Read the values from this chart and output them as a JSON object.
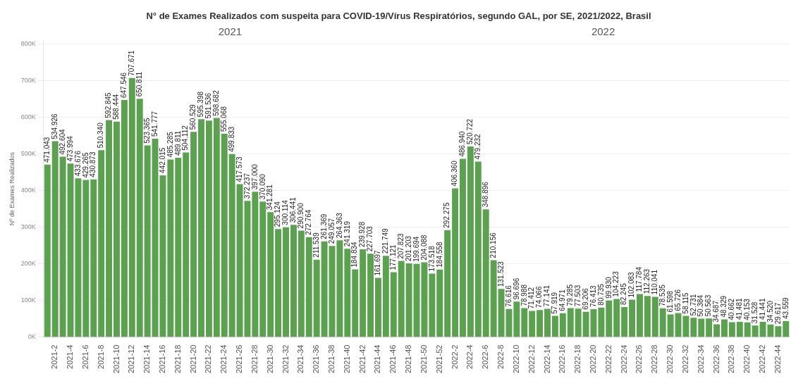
{
  "chart_data": {
    "type": "bar",
    "title": "N° de Exames Realizados com suspeita para COVID-19/Vírus Respiratórios, segundo GAL, por SE, 2021/2022, Brasil",
    "ylabel": "Nº de Exames Realizados",
    "categories": [
      null,
      "2021-2",
      null,
      "2021-4",
      null,
      "2021-6",
      null,
      "2021-8",
      null,
      "2021-10",
      null,
      "2021-12",
      null,
      "2021-14",
      null,
      "2021-16",
      null,
      "2021-18",
      null,
      "2021-20",
      null,
      "2021-22",
      null,
      "2021-24",
      null,
      "2021-26",
      null,
      "2021-28",
      null,
      "2021-30",
      null,
      "2021-32",
      null,
      "2021-34",
      null,
      "2021-36",
      null,
      "2021-38",
      null,
      "2021-40",
      null,
      "2021-42",
      null,
      "2021-44",
      null,
      "2021-46",
      null,
      "2021-48",
      null,
      "2021-50",
      null,
      "2021-52",
      null,
      "2022-2",
      null,
      "2022-4",
      null,
      "2022-6",
      null,
      "2022-8",
      null,
      "2022-10",
      null,
      "2022-12",
      null,
      "2022-14",
      null,
      "2022-16",
      null,
      "2022-18",
      null,
      "2022-20",
      null,
      "2022-22",
      null,
      "2022-24",
      null,
      "2022-26",
      null,
      "2022-28",
      null,
      "2022-30",
      null,
      "2022-32",
      null,
      "2022-34",
      null,
      "2022-36",
      null,
      "2022-38",
      null,
      "2022-40",
      null,
      "2022-42",
      null,
      "2022-44",
      null
    ],
    "values": [
      471043,
      534926,
      492604,
      473994,
      433676,
      429265,
      430873,
      510340,
      592845,
      588444,
      647546,
      707671,
      650811,
      523365,
      541777,
      442015,
      485285,
      489811,
      504112,
      560529,
      595398,
      591536,
      598682,
      555068,
      499833,
      417573,
      372237,
      397000,
      370090,
      341281,
      295124,
      300114,
      306441,
      290900,
      272764,
      211539,
      261369,
      249057,
      264363,
      241319,
      184834,
      239928,
      227703,
      161697,
      221749,
      177121,
      207823,
      201203,
      199694,
      204088,
      173518,
      184558,
      292275,
      406360,
      486940,
      520722,
      479232,
      348896,
      210156,
      131523,
      76616,
      96696,
      78988,
      71412,
      74066,
      77141,
      57919,
      64971,
      79285,
      77503,
      69206,
      76413,
      80735,
      99930,
      104223,
      82245,
      102083,
      117784,
      112263,
      110041,
      78535,
      61598,
      65726,
      58115,
      52731,
      50384,
      50563,
      34687,
      48329,
      40662,
      41481,
      40153,
      31528,
      41441,
      34520,
      29617,
      43559
    ],
    "value_labels": [
      "471.043",
      "534.926",
      "492.604",
      "473.994",
      "433.676",
      "429.265",
      "430.873",
      "510.340",
      "592.845",
      "588.444",
      "647.546",
      "707.671",
      "650.811",
      "523.365",
      "541.777",
      "442.015",
      "485.285",
      "489.811",
      "504.112",
      "560.529",
      "595.398",
      "591.536",
      "598.682",
      "555.068",
      "499.833",
      "417.573",
      "372.237",
      "397.000",
      "370.090",
      "341.281",
      "295.124",
      "300.114",
      "306.441",
      "290.900",
      "272.764",
      "211.539",
      "261.369",
      "249.057",
      "264.363",
      "241.319",
      "184.834",
      "239.928",
      "227.703",
      "161.697",
      "221.749",
      "177.121",
      "207.823",
      "201.203",
      "199.694",
      "204.088",
      "173.518",
      "184.558",
      "292.275",
      "406.360",
      "486.940",
      "520.722",
      "479.232",
      "348.896",
      "210.156",
      "131.523",
      "76.616",
      "96.696",
      "78.988",
      "71.412",
      "74.066",
      "77.141",
      "57.919",
      "64.971",
      "79.285",
      "77.503",
      "69.206",
      "76.413",
      "80.735",
      "99.930",
      "104.223",
      "82.245",
      "102.083",
      "117.784",
      "112.263",
      "110.041",
      "78.535",
      "61.598",
      "65.726",
      "58.115",
      "52.731",
      "50.384",
      "50.563",
      "34.687",
      "48.329",
      "40.662",
      "41.481",
      "40.153",
      "31.528",
      "41.441",
      "34.520",
      "29.617",
      "43.559"
    ],
    "color": "#5ba150",
    "ylim": [
      0,
      810000
    ],
    "yticks": [
      {
        "value": 0,
        "label": "0K"
      },
      {
        "value": 100000,
        "label": "100K"
      },
      {
        "value": 200000,
        "label": "200K"
      },
      {
        "value": 300000,
        "label": "300K"
      },
      {
        "value": 400000,
        "label": "400K"
      },
      {
        "value": 500000,
        "label": "500K"
      },
      {
        "value": 600000,
        "label": "600K"
      },
      {
        "value": 700000,
        "label": "700K"
      },
      {
        "value": 800000,
        "label": "800K"
      }
    ],
    "grid": "y",
    "annotations": [
      "2021",
      "2022"
    ]
  }
}
